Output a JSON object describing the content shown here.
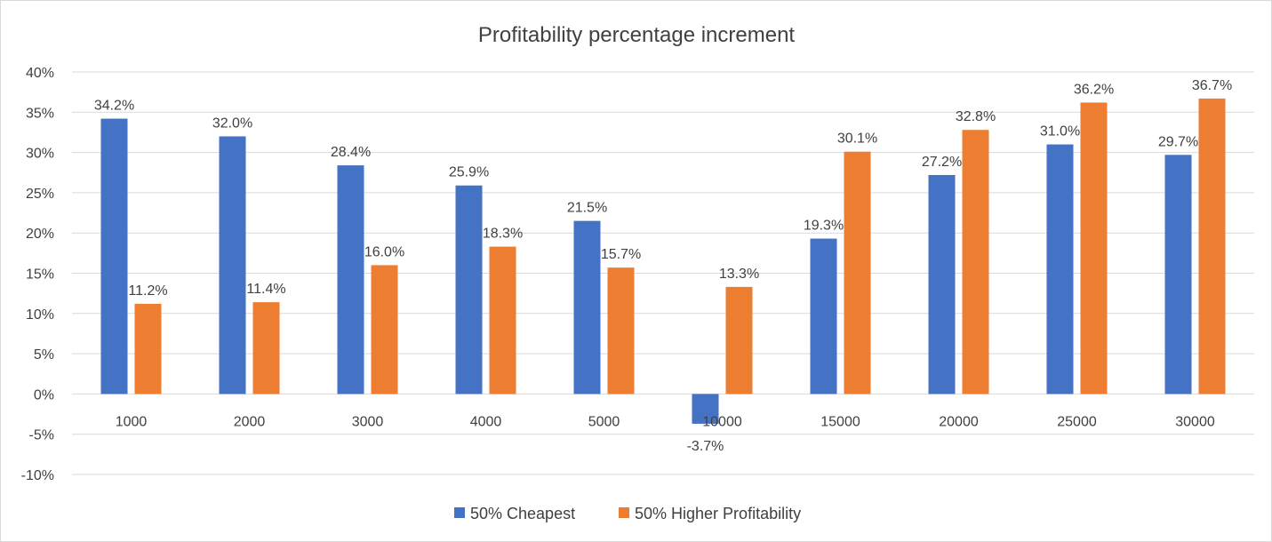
{
  "chart_data": {
    "type": "bar",
    "title": "Profitability percentage increment",
    "xlabel": "",
    "ylabel": "",
    "categories": [
      "1000",
      "2000",
      "3000",
      "4000",
      "5000",
      "10000",
      "15000",
      "20000",
      "25000",
      "30000"
    ],
    "series": [
      {
        "name": "50% Cheapest",
        "color": "#4472c4",
        "values": [
          34.2,
          32.0,
          28.4,
          25.9,
          21.5,
          -3.7,
          19.3,
          27.2,
          31.0,
          29.7
        ],
        "labels": [
          "34.2%",
          "32.0%",
          "28.4%",
          "25.9%",
          "21.5%",
          "-3.7%",
          "19.3%",
          "27.2%",
          "31.0%",
          "29.7%"
        ]
      },
      {
        "name": "50% Higher Profitability",
        "color": "#ed7d31",
        "values": [
          11.2,
          11.4,
          16.0,
          18.3,
          15.7,
          13.3,
          30.1,
          32.8,
          36.2,
          36.7
        ],
        "labels": [
          "11.2%",
          "11.4%",
          "16.0%",
          "18.3%",
          "15.7%",
          "13.3%",
          "30.1%",
          "32.8%",
          "36.2%",
          "36.7%"
        ]
      }
    ],
    "ylim": [
      -10,
      40
    ],
    "yticks": [
      40,
      35,
      30,
      25,
      20,
      15,
      10,
      5,
      0,
      -5,
      -10
    ],
    "ytick_labels": [
      "40%",
      "35%",
      "30%",
      "25%",
      "20%",
      "15%",
      "10%",
      "5%",
      "0%",
      "-5%",
      "-10%"
    ],
    "grid": true,
    "legend_position": "bottom"
  }
}
